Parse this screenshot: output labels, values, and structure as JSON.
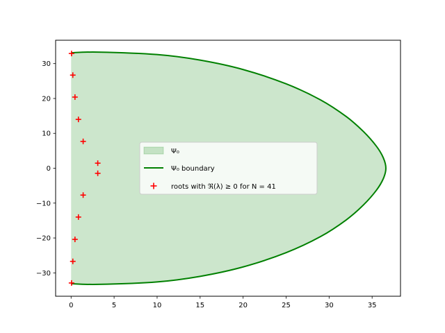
{
  "chart_data": {
    "type": "area",
    "title": "",
    "xlabel": "",
    "ylabel": "",
    "xlim": [
      -1.8,
      38.3
    ],
    "ylim": [
      -36.7,
      36.7
    ],
    "xticks": [
      0,
      5,
      10,
      15,
      20,
      25,
      30,
      35
    ],
    "yticks": [
      -30,
      -20,
      -10,
      0,
      10,
      20,
      30
    ],
    "grid": false,
    "legend": {
      "placement": "center",
      "entries": [
        {
          "label": "Ψ₀",
          "kind": "patch",
          "color": "#008000",
          "alpha": 0.2
        },
        {
          "label": "Ψ₀ boundary",
          "kind": "line",
          "color": "#008000"
        },
        {
          "label": "roots with ℜ(λ) ≥ 0 for N = 41",
          "kind": "marker",
          "marker": "+",
          "color": "#ff0000"
        }
      ]
    },
    "series": [
      {
        "name": "Ψ₀ boundary",
        "kind": "line",
        "color": "#008000",
        "x": [
          0.0,
          3.1,
          10.0,
          15.0,
          20.0,
          25.0,
          29.0,
          32.0,
          34.0,
          35.5,
          36.3,
          36.6,
          36.3,
          35.5,
          34.0,
          32.0,
          29.0,
          25.0,
          20.0,
          15.0,
          10.0,
          3.1,
          0.0
        ],
        "y": [
          33.1,
          33.3,
          32.6,
          31.0,
          28.3,
          24.2,
          19.6,
          14.8,
          10.5,
          6.3,
          3.0,
          0.0,
          -3.0,
          -6.3,
          -10.5,
          -14.8,
          -19.6,
          -24.2,
          -28.3,
          -31.0,
          -32.6,
          -33.3,
          -33.1
        ]
      },
      {
        "name": "roots with ℜ(λ) ≥ 0 for N = 41",
        "kind": "scatter",
        "marker": "+",
        "color": "#ff0000",
        "x": [
          0.05,
          0.2,
          0.45,
          0.85,
          1.4,
          3.1,
          3.1,
          1.4,
          0.85,
          0.45,
          0.2,
          0.05
        ],
        "y": [
          32.9,
          26.7,
          20.4,
          14.0,
          7.7,
          1.45,
          -1.45,
          -7.7,
          -14.0,
          -20.4,
          -26.7,
          -32.9
        ]
      }
    ]
  }
}
